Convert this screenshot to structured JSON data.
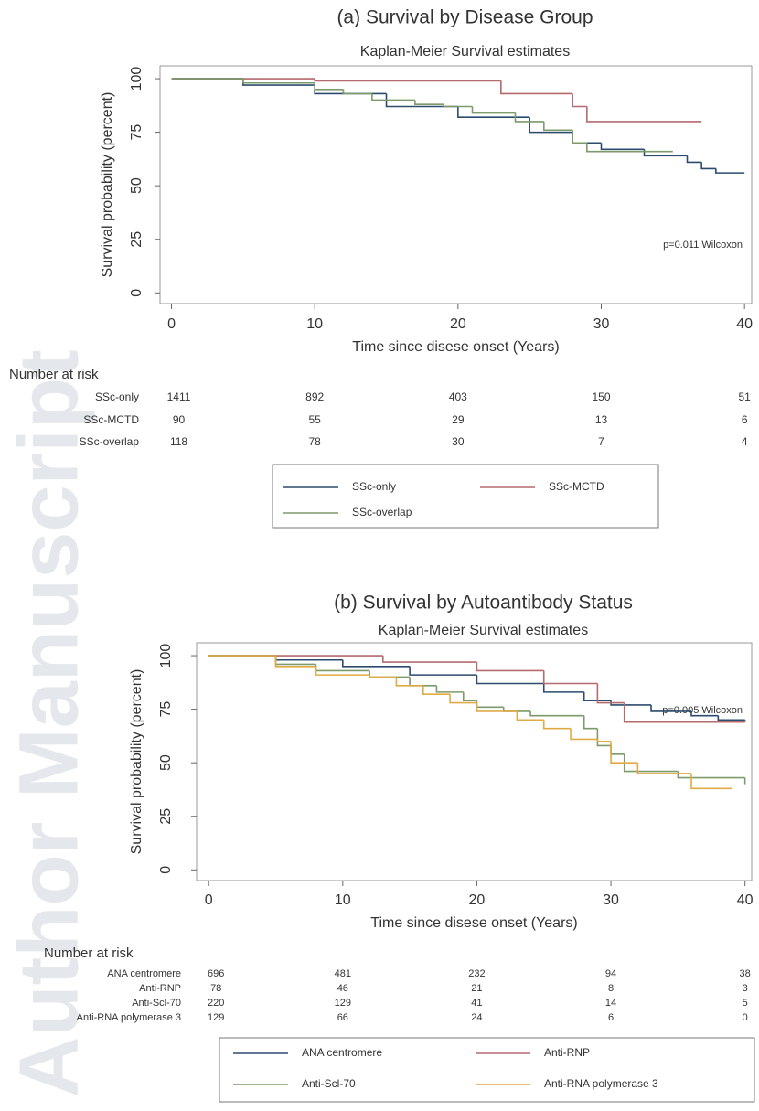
{
  "watermark": "Author Manuscript",
  "chart_data": [
    {
      "type": "line",
      "step": true,
      "title": "(a) Survival by Disease Group",
      "subtitle": "Kaplan-Meier Survival estimates",
      "xlabel": "Time since disese onset (Years)",
      "ylabel": "Survival probability (percent)",
      "annotation": "p=0.011 Wilcoxon",
      "xlim": [
        -0.8,
        40.5
      ],
      "ylim": [
        -5,
        106
      ],
      "xticks": [
        0,
        10,
        20,
        30,
        40
      ],
      "yticks": [
        0,
        25,
        50,
        75,
        100
      ],
      "series": [
        {
          "name": "SSc-only",
          "color": "#2b4c6f",
          "x": [
            0,
            5,
            10,
            15,
            20,
            25,
            28,
            30,
            33,
            36,
            37,
            38,
            40
          ],
          "values": [
            100,
            97,
            93,
            87,
            82,
            75,
            70,
            67,
            64,
            61,
            58,
            56,
            56
          ]
        },
        {
          "name": "SSc-MCTD",
          "color": "#b56a6e",
          "x": [
            0,
            10,
            23,
            28,
            29,
            37
          ],
          "values": [
            100,
            99,
            93,
            87,
            80,
            80
          ]
        },
        {
          "name": "SSc-overlap",
          "color": "#7d9a6a",
          "x": [
            0,
            5,
            10,
            12,
            14,
            17,
            19,
            21,
            24,
            26,
            28,
            29,
            35
          ],
          "values": [
            100,
            98,
            95,
            93,
            90,
            88,
            87,
            84,
            80,
            76,
            70,
            66,
            66
          ]
        }
      ],
      "risk_table": {
        "title": "Number at risk",
        "rows": [
          {
            "name": "SSc-only",
            "values": [
              1411,
              892,
              403,
              150,
              51
            ]
          },
          {
            "name": "SSc-MCTD",
            "values": [
              90,
              55,
              29,
              13,
              6
            ]
          },
          {
            "name": "SSc-overlap",
            "values": [
              118,
              78,
              30,
              7,
              4
            ]
          }
        ]
      }
    },
    {
      "type": "line",
      "step": true,
      "title": "(b) Survival by Autoantibody Status",
      "subtitle": "Kaplan-Meier Survival estimates",
      "xlabel": "Time since disese onset (Years)",
      "ylabel": "Survival probability (percent)",
      "annotation": "p=0.005 Wilcoxon",
      "xlim": [
        -0.9,
        40.5
      ],
      "ylim": [
        -5,
        106
      ],
      "xticks": [
        0,
        10,
        20,
        30,
        40
      ],
      "yticks": [
        0,
        25,
        50,
        75,
        100
      ],
      "series": [
        {
          "name": "ANA centromere",
          "color": "#2b4c6f",
          "x": [
            0,
            5,
            10,
            15,
            20,
            25,
            28,
            30,
            33,
            36,
            38,
            40
          ],
          "values": [
            100,
            98,
            95,
            91,
            87,
            83,
            79,
            77,
            74,
            72,
            70,
            69
          ]
        },
        {
          "name": "Anti-RNP",
          "color": "#b56a6e",
          "x": [
            0,
            13,
            20,
            25,
            29,
            31,
            40
          ],
          "values": [
            100,
            97,
            93,
            87,
            78,
            69,
            69
          ]
        },
        {
          "name": "Anti-Scl-70",
          "color": "#7d9a6a",
          "x": [
            0,
            5,
            8,
            12,
            15,
            17,
            19,
            20,
            22,
            24,
            28,
            29,
            30,
            31,
            35,
            40
          ],
          "values": [
            100,
            96,
            93,
            90,
            86,
            83,
            79,
            76,
            74,
            72,
            66,
            58,
            54,
            46,
            43,
            40
          ]
        },
        {
          "name": "Anti-RNA polymerase 3",
          "color": "#e0aa45",
          "x": [
            0,
            5,
            8,
            12,
            14,
            16,
            18,
            20,
            23,
            25,
            27,
            29,
            30,
            32,
            36,
            39
          ],
          "values": [
            100,
            95,
            91,
            90,
            86,
            82,
            78,
            74,
            70,
            66,
            61,
            60,
            50,
            45,
            38,
            38
          ]
        }
      ],
      "risk_table": {
        "title": "Number at risk",
        "rows": [
          {
            "name": "ANA centromere",
            "values": [
              696,
              481,
              232,
              94,
              38
            ]
          },
          {
            "name": "Anti-RNP",
            "values": [
              78,
              46,
              21,
              8,
              3
            ]
          },
          {
            "name": "Anti-Scl-70",
            "values": [
              220,
              129,
              41,
              14,
              5
            ]
          },
          {
            "name": "Anti-RNA polymerase 3",
            "values": [
              129,
              66,
              24,
              6,
              0
            ]
          }
        ]
      }
    }
  ]
}
